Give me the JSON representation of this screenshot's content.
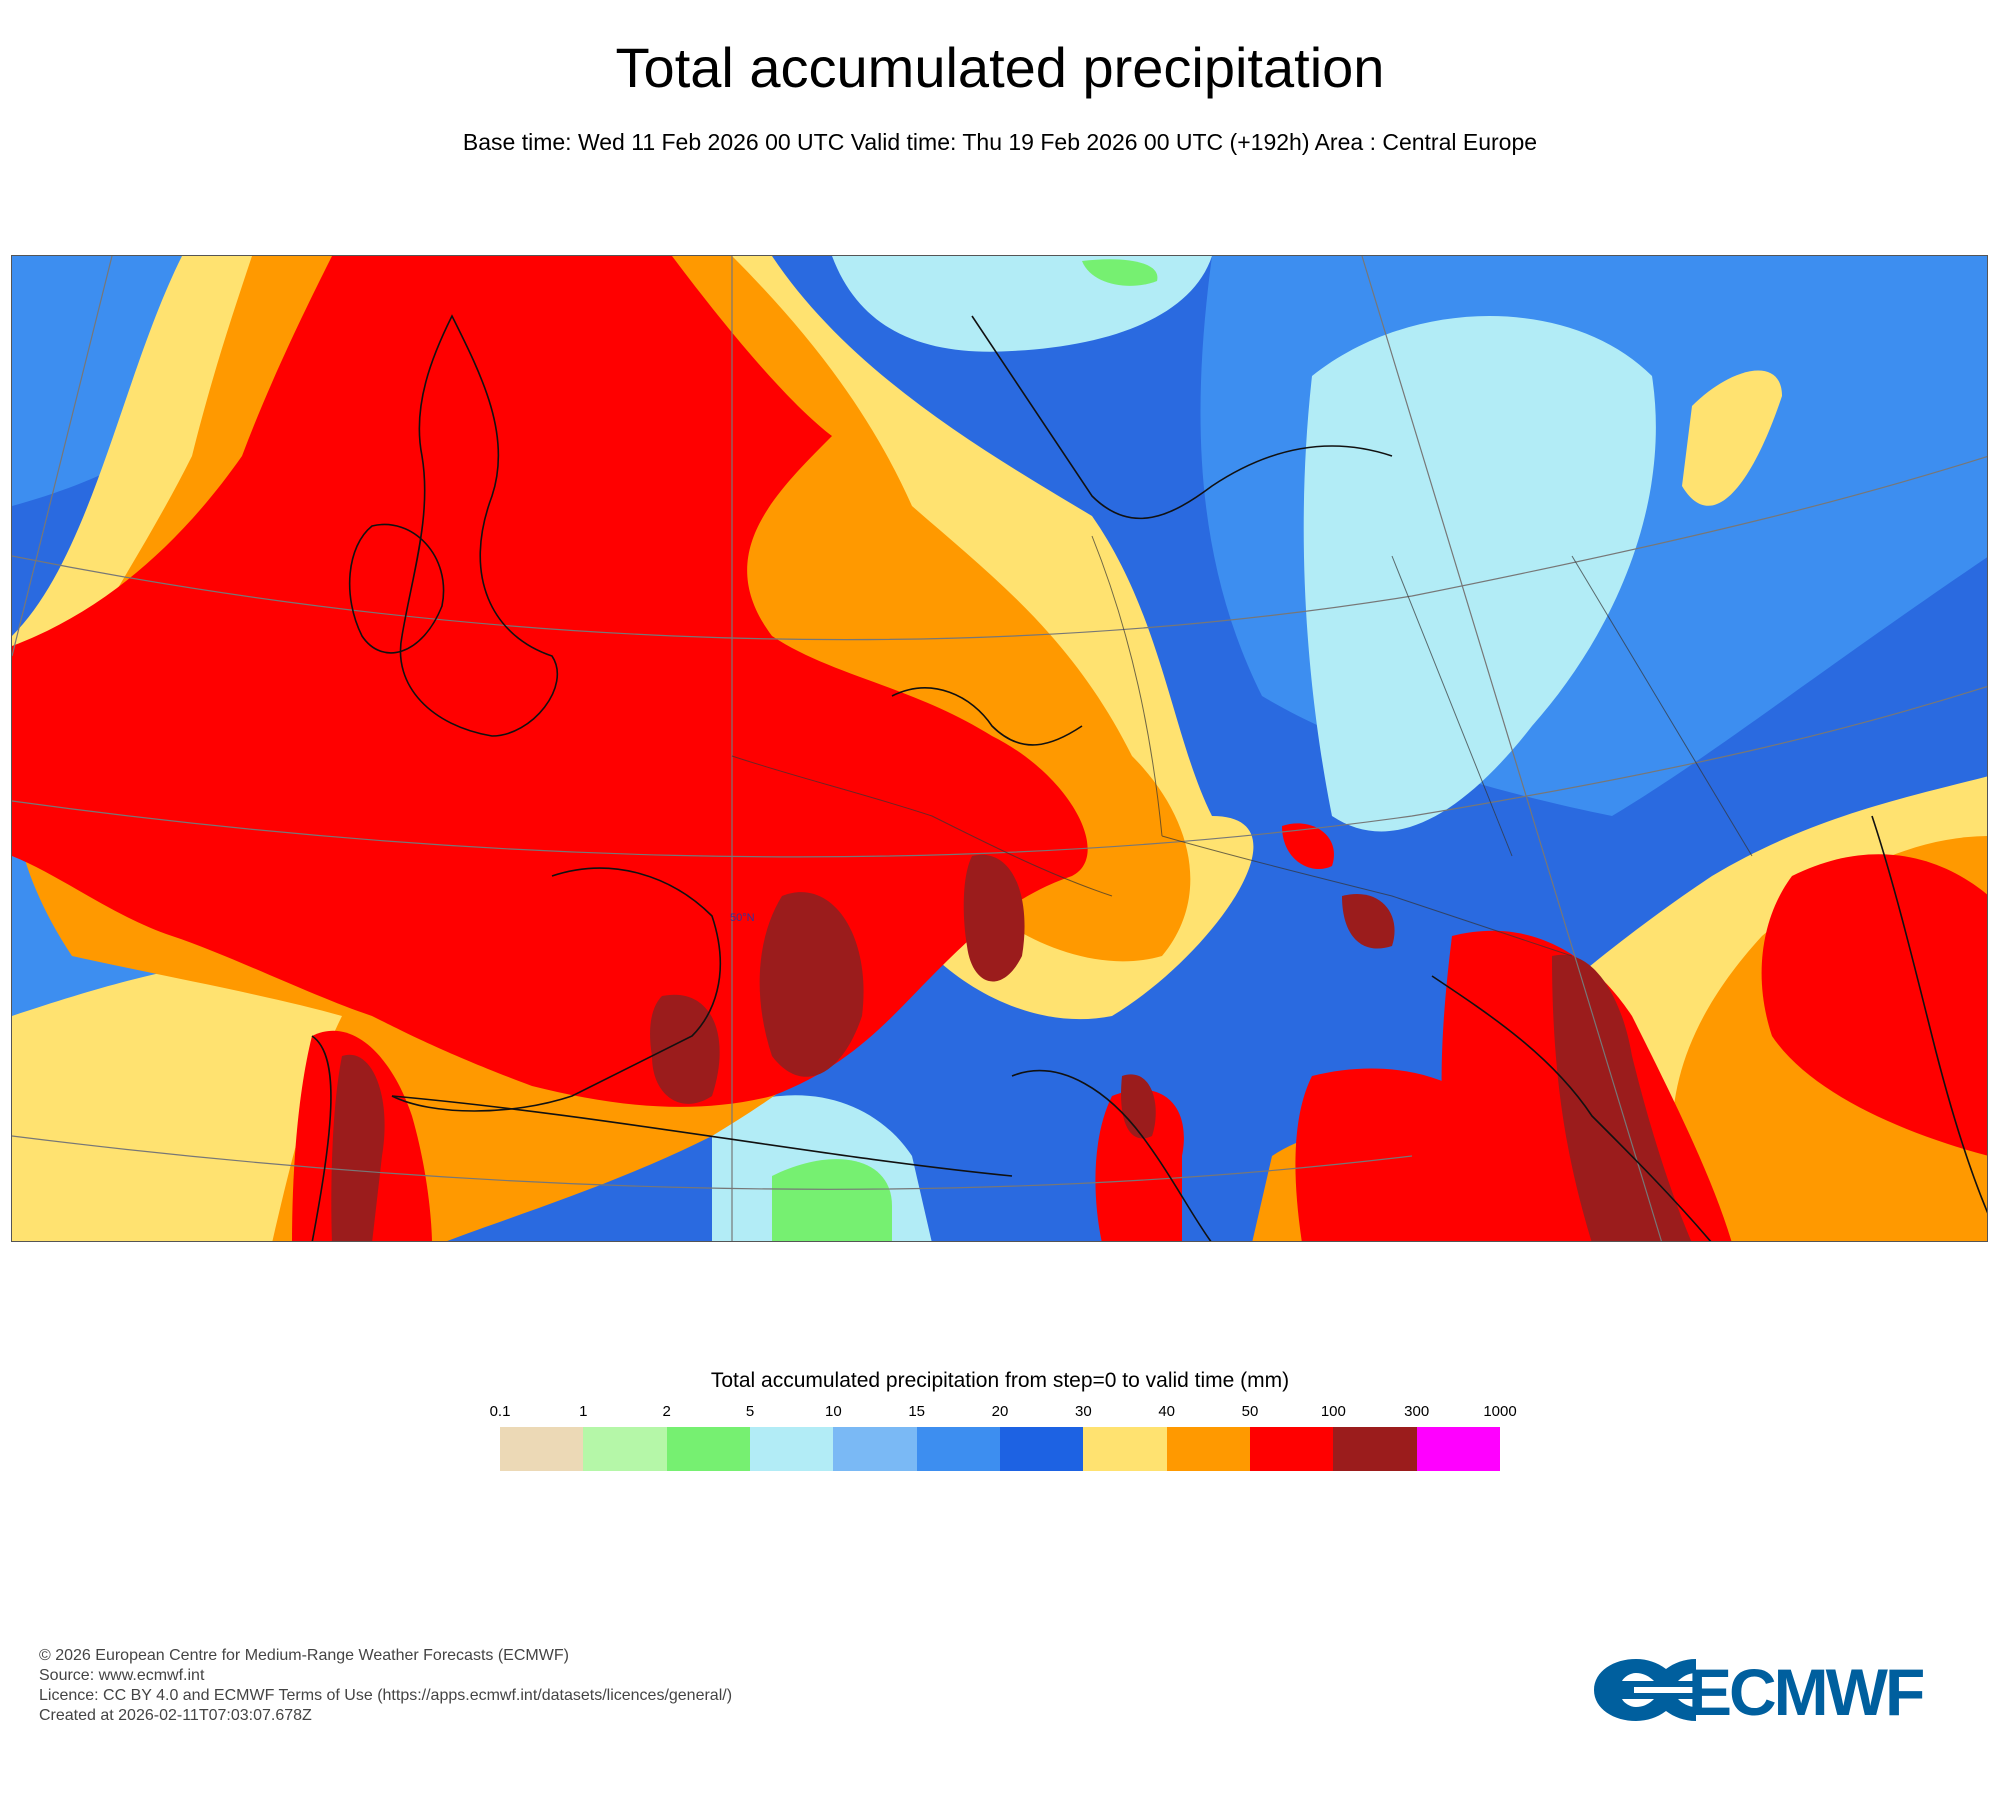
{
  "header": {
    "title": "Total accumulated precipitation",
    "subtitle": "Base time: Wed 11 Feb 2026 00 UTC Valid time: Thu 19 Feb 2026 00 UTC (+192h) Area : Central Europe"
  },
  "map": {
    "latitude_label": "50°N",
    "colors": {
      "ocean_background": "#2a6ae0",
      "heavy_red": "#ff0000",
      "dark_red": "#9b1c1c",
      "orange": "#ff9900",
      "yellow": "#ffe270",
      "light_blue": "#b2ecf6",
      "mid_blue": "#3d8ef0",
      "green": "#76f071",
      "coastline": "#111111",
      "graticule": "#777777"
    }
  },
  "legend": {
    "title": "Total accumulated precipitation from step=0 to valid time (mm)",
    "ticks": [
      "0.1",
      "1",
      "2",
      "5",
      "10",
      "15",
      "20",
      "30",
      "40",
      "50",
      "100",
      "300",
      "1000"
    ],
    "colors": [
      "#ecd9b6",
      "#b5f7a8",
      "#76f071",
      "#b2ecf6",
      "#7ab9f5",
      "#3d8ef0",
      "#1d62e3",
      "#ffe270",
      "#ff9900",
      "#ff0000",
      "#9b1c1c",
      "#ff00ff"
    ]
  },
  "footer": {
    "lines": [
      "© 2026 European Centre for Medium-Range Weather Forecasts (ECMWF)",
      "Source: www.ecmwf.int",
      "Licence: CC BY 4.0 and ECMWF Terms of Use (https://apps.ecmwf.int/datasets/licences/general/)",
      "Created at 2026-02-11T07:03:07.678Z"
    ]
  },
  "logo": {
    "text": "ECMWF",
    "color": "#005f9e"
  }
}
